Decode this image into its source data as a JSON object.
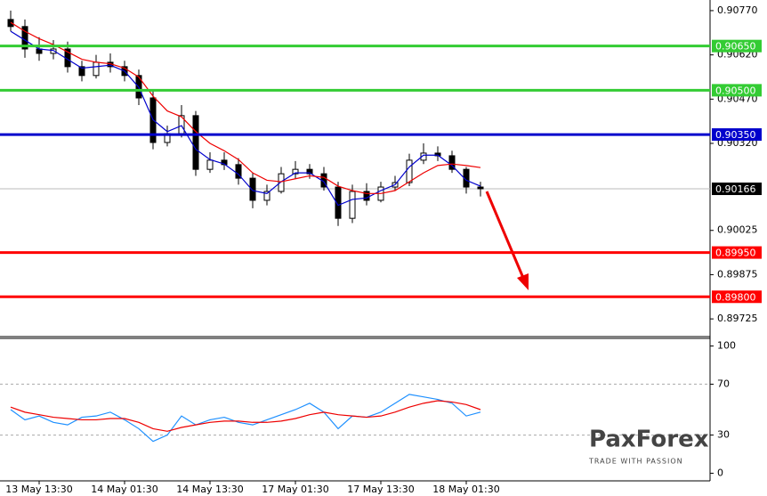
{
  "chart_data": [
    {
      "type": "candlestick",
      "categories": [
        null,
        null,
        "13 May 13:30",
        null,
        null,
        null,
        null,
        null,
        "14 May 01:30",
        null,
        null,
        null,
        null,
        null,
        "14 May 13:30",
        null,
        null,
        null,
        null,
        null,
        "17 May 01:30",
        null,
        null,
        null,
        null,
        null,
        "17 May 13:30",
        null,
        null,
        null,
        null,
        null,
        "18 May 01:30",
        null
      ],
      "open": [
        0.9074,
        0.90716,
        0.9064,
        0.90625,
        0.9064,
        0.9058,
        0.9055,
        0.90595,
        0.9058,
        0.9055,
        0.90474,
        0.90323,
        0.90353,
        0.90414,
        0.90232,
        0.90263,
        0.90248,
        0.90202,
        0.90127,
        0.90157,
        0.90217,
        0.90232,
        0.90217,
        0.90172,
        0.90066,
        0.90157,
        0.90127,
        0.90172,
        0.90187,
        0.90263,
        0.90287,
        0.90278,
        0.90232,
        0.90172
      ],
      "high": [
        0.9077,
        0.9074,
        0.9068,
        0.9067,
        0.90665,
        0.906,
        0.9062,
        0.90625,
        0.906,
        0.9057,
        0.905,
        0.9038,
        0.9045,
        0.9043,
        0.9029,
        0.9029,
        0.9027,
        0.9022,
        0.9018,
        0.9024,
        0.9026,
        0.9025,
        0.9024,
        0.9019,
        0.9018,
        0.90185,
        0.9019,
        0.9021,
        0.90285,
        0.9032,
        0.9031,
        0.90295,
        0.9024,
        0.9019
      ],
      "low": [
        0.907,
        0.9061,
        0.906,
        0.90605,
        0.9056,
        0.9053,
        0.9054,
        0.9056,
        0.9053,
        0.9045,
        0.903,
        0.9031,
        0.9034,
        0.9021,
        0.9022,
        0.9023,
        0.9018,
        0.901,
        0.9011,
        0.9015,
        0.902,
        0.902,
        0.9016,
        0.9004,
        0.9005,
        0.9011,
        0.9012,
        0.9016,
        0.90175,
        0.9025,
        0.9026,
        0.9022,
        0.9015,
        0.9014
      ],
      "close": [
        0.90716,
        0.9064,
        0.90625,
        0.9064,
        0.9058,
        0.9055,
        0.90595,
        0.9058,
        0.9055,
        0.90474,
        0.90323,
        0.90353,
        0.90414,
        0.90232,
        0.90263,
        0.90248,
        0.90202,
        0.90127,
        0.90157,
        0.90217,
        0.90232,
        0.90217,
        0.90172,
        0.90066,
        0.90157,
        0.90127,
        0.90172,
        0.90187,
        0.90263,
        0.90287,
        0.90278,
        0.90232,
        0.90172,
        0.90166
      ],
      "series": [
        {
          "color": "#0000cc",
          "values": [
            0.907,
            0.9067,
            0.9064,
            0.90635,
            0.90605,
            0.90575,
            0.9058,
            0.90585,
            0.90565,
            0.9051,
            0.904,
            0.9036,
            0.9038,
            0.903,
            0.90265,
            0.9025,
            0.90215,
            0.9016,
            0.9015,
            0.9019,
            0.9022,
            0.9022,
            0.9019,
            0.9011,
            0.9013,
            0.90135,
            0.9016,
            0.9018,
            0.9024,
            0.9028,
            0.9028,
            0.90245,
            0.90195,
            0.90175
          ]
        },
        {
          "color": "#ee0000",
          "values": [
            0.9073,
            0.907,
            0.90675,
            0.90655,
            0.9063,
            0.90605,
            0.90595,
            0.9059,
            0.90575,
            0.90545,
            0.9048,
            0.9043,
            0.9041,
            0.9036,
            0.9032,
            0.90295,
            0.90265,
            0.9022,
            0.90195,
            0.9019,
            0.902,
            0.9021,
            0.90205,
            0.90175,
            0.9016,
            0.9015,
            0.9015,
            0.9016,
            0.9019,
            0.9022,
            0.90245,
            0.9025,
            0.90245,
            0.90238
          ]
        }
      ],
      "levels": [
        {
          "value": 0.9065,
          "label": "0.90650",
          "color": "#33cc33"
        },
        {
          "value": 0.905,
          "label": "0.90500",
          "color": "#33cc33"
        },
        {
          "value": 0.9035,
          "label": "0.90350",
          "color": "#0000cc"
        },
        {
          "value": 0.8995,
          "label": "0.89950",
          "color": "#ff0000"
        },
        {
          "value": 0.898,
          "label": "0.89800",
          "color": "#ff0000"
        }
      ],
      "current_price": {
        "value": 0.90166,
        "label": "0.90166"
      },
      "ylim": [
        0.89665,
        0.90806
      ],
      "yticks": [
        {
          "value": 0.9077,
          "label": "0.90770"
        },
        {
          "value": 0.9062,
          "label": "0.90620"
        },
        {
          "value": 0.9047,
          "label": "0.90470"
        },
        {
          "value": 0.9032,
          "label": "0.90320"
        },
        {
          "value": 0.90025,
          "label": "0.90025"
        },
        {
          "value": 0.89875,
          "label": "0.89875"
        },
        {
          "value": 0.89725,
          "label": "0.89725"
        }
      ]
    },
    {
      "type": "line",
      "series": [
        {
          "color": "#1e90ff",
          "values": [
            50,
            42,
            45,
            40,
            38,
            44,
            45,
            48,
            42,
            35,
            25,
            30,
            45,
            38,
            42,
            44,
            40,
            38,
            42,
            46,
            50,
            55,
            48,
            35,
            45,
            44,
            48,
            55,
            62,
            60,
            58,
            55,
            45,
            48
          ]
        },
        {
          "color": "#ee0000",
          "values": [
            52,
            48,
            46,
            44,
            43,
            42,
            42,
            43,
            43,
            40,
            35,
            33,
            36,
            38,
            40,
            41,
            41,
            40,
            40,
            41,
            43,
            46,
            48,
            46,
            45,
            44,
            45,
            48,
            52,
            55,
            57,
            56,
            54,
            50
          ]
        }
      ],
      "ylim": [
        -6,
        106
      ],
      "yticks": [
        0,
        30,
        70,
        100
      ]
    }
  ],
  "logo": {
    "name": "PaxForex",
    "tagline": "TRADE WITH PASSION"
  }
}
